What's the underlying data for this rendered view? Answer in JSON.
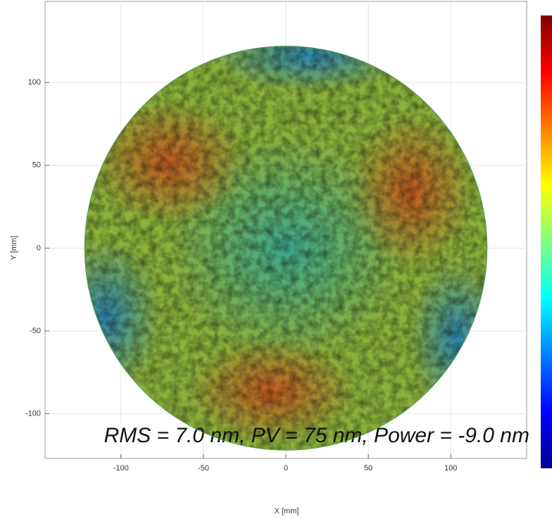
{
  "chart_data": {
    "type": "surface-map",
    "xlabel": "X [mm]",
    "ylabel": "Y [mm]",
    "annotation": "RMS = 7.0 nm, PV = 75 nm, Power = -9.0 nm",
    "aperture_radius": 122,
    "xlim": [
      -146,
      146
    ],
    "xticks": [
      -100,
      -50,
      0,
      50,
      100
    ],
    "ylim": [
      -127,
      149
    ],
    "yticks": [
      -100,
      -50,
      0,
      50,
      100
    ],
    "grid": true,
    "colormap": "jet",
    "colorbar": true
  }
}
